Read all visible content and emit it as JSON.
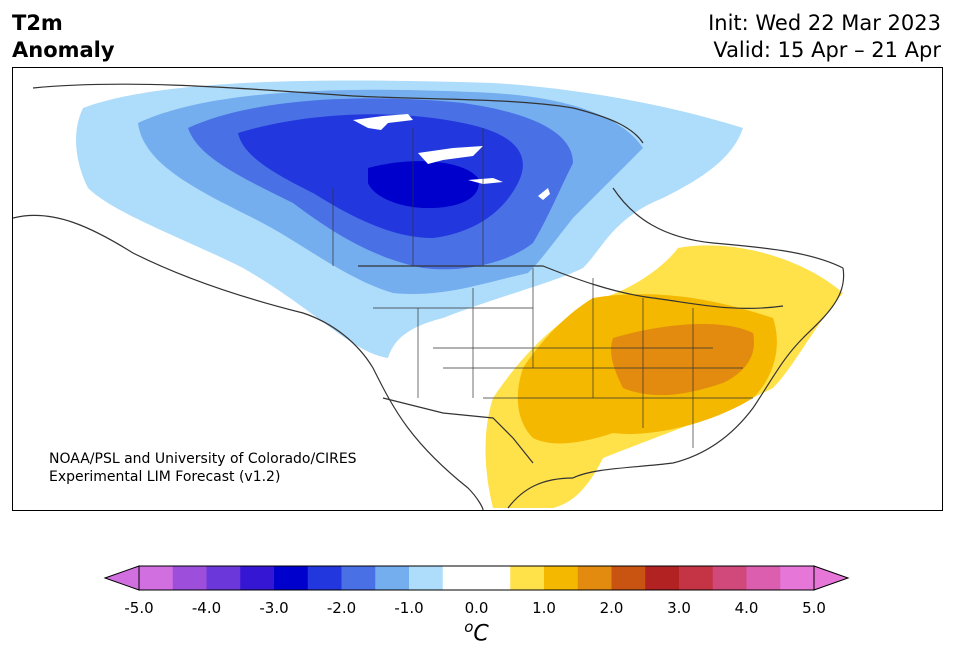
{
  "header": {
    "title_line1": "T2m",
    "title_line2": "Anomaly",
    "init": "Init: Wed 22 Mar 2023",
    "valid": "Valid: 15 Apr – 21 Apr"
  },
  "map": {
    "region": "North America",
    "credit_line1": "NOAA/PSL and University of Colorado/CIRES",
    "credit_line2": "Experimental LIM Forecast (v1.2)"
  },
  "colorbar": {
    "unit": "°C",
    "unit_base": "o",
    "unit_letter": "C",
    "ticks": [
      "-5.0",
      "-4.0",
      "-3.0",
      "-2.0",
      "-1.0",
      "0.0",
      "1.0",
      "2.0",
      "3.0",
      "4.0",
      "5.0"
    ],
    "colors": [
      "#d16fe0",
      "#9d4fdc",
      "#6b37da",
      "#3517d3",
      "#0000cd",
      "#2238de",
      "#4a70e6",
      "#74aeef",
      "#aedcfb",
      "#ffffff",
      "#ffffff",
      "#ffe14a",
      "#f4b800",
      "#e28b0e",
      "#c95412",
      "#b22222",
      "#c43444",
      "#d0497a",
      "#dc5faf",
      "#e676d8"
    ],
    "min_color": "#d16fe0",
    "max_color": "#e676d8"
  },
  "legend_colors": {
    "light_blue": "#aedcfb",
    "blue": "#74aeef",
    "mid_blue": "#4a70e6",
    "deep_blue": "#2238de",
    "darkest_blue": "#0000cd",
    "yellow": "#ffe14a",
    "gold": "#f4b800",
    "orange": "#e28b0e"
  }
}
